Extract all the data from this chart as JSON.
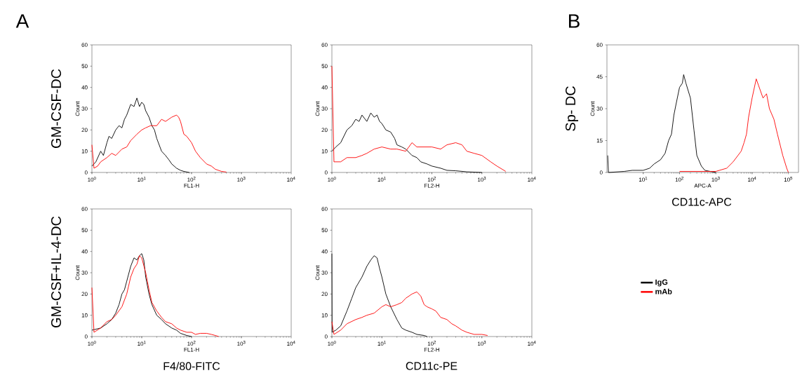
{
  "chart_data": [
    {
      "type": "line",
      "log": "x",
      "xlabel": "FL1-H",
      "ylabel": "Count",
      "xlim": [
        1,
        10000
      ],
      "ylim": [
        0,
        60
      ],
      "xticks": [
        {
          "value": 1,
          "label": "10$^{0}$"
        },
        {
          "value": 10,
          "label": "10$^{1}$"
        },
        {
          "value": 100,
          "label": "10$^{2}$"
        },
        {
          "value": 1000,
          "label": "10$^{3}$"
        },
        {
          "value": 10000,
          "label": "10$^{4}$"
        }
      ],
      "yticks": [
        0,
        10,
        20,
        30,
        40,
        50,
        60
      ],
      "grid": false,
      "marker": "none",
      "annotations": [
        "A",
        "GM-CSF-DC"
      ],
      "series": [
        {
          "color": "#000000",
          "x": [
            1,
            1.2,
            1.5,
            1.7,
            2,
            2.2,
            2.5,
            3,
            3.5,
            4,
            4.5,
            5,
            6,
            7,
            8,
            9,
            10,
            11,
            12,
            14,
            16,
            18,
            20,
            25,
            30,
            35,
            40,
            50,
            60,
            70,
            90
          ],
          "values": [
            3,
            5,
            10,
            8,
            14,
            17,
            16,
            20,
            22,
            21,
            25,
            27,
            32,
            31,
            35,
            31,
            33,
            32,
            29,
            26,
            22,
            20,
            16,
            10,
            8,
            6,
            4,
            2,
            1,
            0.5,
            0
          ]
        },
        {
          "color": "#ff0000",
          "x": [
            1,
            1.1,
            1.3,
            1.5,
            2,
            2.5,
            3,
            4,
            5,
            6,
            8,
            10,
            12,
            15,
            20,
            25,
            30,
            40,
            50,
            55,
            60,
            70,
            80,
            100,
            120,
            150,
            200,
            250,
            300,
            400,
            500
          ],
          "values": [
            13,
            2,
            3,
            5,
            7,
            9,
            8,
            11,
            12,
            15,
            18,
            20,
            21,
            22,
            22,
            25,
            24,
            26,
            27,
            26,
            24,
            18,
            17,
            14,
            10,
            7,
            4,
            3,
            1.5,
            0.5,
            0.2
          ]
        }
      ]
    },
    {
      "type": "line",
      "log": "x",
      "xlabel": "FL2-H",
      "ylabel": "Count",
      "xlim": [
        1,
        10000
      ],
      "ylim": [
        0,
        60
      ],
      "xticks": [
        {
          "value": 1,
          "label": "10$^{0}$"
        },
        {
          "value": 10,
          "label": "10$^{1}$"
        },
        {
          "value": 100,
          "label": "10$^{2}$"
        },
        {
          "value": 1000,
          "label": "10$^{3}$"
        },
        {
          "value": 10000,
          "label": "10$^{4}$"
        }
      ],
      "yticks": [
        0,
        10,
        20,
        30,
        40,
        50,
        60
      ],
      "grid": false,
      "marker": "none",
      "series": [
        {
          "color": "#000000",
          "x": [
            1,
            1.2,
            1.5,
            2,
            2.5,
            3,
            3.5,
            4,
            5,
            6,
            7,
            8,
            9,
            10,
            12,
            15,
            18,
            20,
            25,
            30,
            40,
            50,
            60,
            80,
            100,
            150,
            200,
            300,
            500,
            1000
          ],
          "values": [
            10,
            12,
            14,
            20,
            22,
            25,
            24,
            27,
            24,
            28,
            26,
            27,
            24,
            23,
            20,
            19,
            16,
            13,
            12,
            11,
            8,
            7,
            5,
            4,
            3,
            2,
            1,
            0.8,
            0.3,
            0
          ]
        },
        {
          "color": "#ff0000",
          "x": [
            1,
            1.1,
            1.5,
            2,
            3,
            4,
            5,
            7,
            10,
            15,
            20,
            30,
            40,
            50,
            70,
            100,
            150,
            200,
            300,
            400,
            500,
            700,
            1000,
            1500,
            2000,
            3000
          ],
          "values": [
            50,
            5,
            5,
            7,
            7,
            8,
            9,
            11,
            12,
            11,
            11,
            10,
            14,
            12,
            12,
            12,
            11,
            13,
            14,
            13,
            10,
            9,
            8,
            5,
            3,
            0.5
          ]
        }
      ]
    },
    {
      "type": "line",
      "log": "x",
      "xlabel": "FL1-H",
      "ylabel": "Count",
      "xlim": [
        1,
        10000
      ],
      "ylim": [
        0,
        60
      ],
      "xticks": [
        {
          "value": 1,
          "label": "10$^{0}$"
        },
        {
          "value": 10,
          "label": "10$^{1}$"
        },
        {
          "value": 100,
          "label": "10$^{2}$"
        },
        {
          "value": 1000,
          "label": "10$^{3}$"
        },
        {
          "value": 10000,
          "label": "10$^{4}$"
        }
      ],
      "yticks": [
        0,
        10,
        20,
        30,
        40,
        50,
        60
      ],
      "grid": false,
      "marker": "none",
      "annotations": [
        "GM-CSF+IL-4-DC",
        "F4/80-FITC"
      ],
      "series": [
        {
          "color": "#000000",
          "x": [
            1,
            1.5,
            2,
            2.5,
            3,
            3.5,
            4,
            4.5,
            5,
            6,
            7,
            8,
            9,
            10,
            11,
            12,
            14,
            16,
            20,
            25,
            30,
            40,
            50,
            60,
            80,
            100
          ],
          "values": [
            3,
            4,
            6,
            8,
            11,
            15,
            20,
            22,
            26,
            33,
            37,
            36,
            38,
            39,
            36,
            28,
            20,
            15,
            10,
            8,
            6,
            4,
            3,
            1.5,
            0.5,
            0
          ]
        },
        {
          "color": "#ff0000",
          "x": [
            1,
            1.1,
            1.5,
            2,
            2.5,
            3,
            4,
            5,
            6,
            7,
            8,
            9,
            10,
            12,
            14,
            16,
            20,
            25,
            30,
            40,
            50,
            60,
            80,
            100,
            120,
            150,
            200,
            250,
            300,
            350
          ],
          "values": [
            23,
            2,
            4,
            7,
            8,
            10,
            14,
            20,
            28,
            32,
            34,
            38,
            37,
            30,
            22,
            16,
            12,
            9,
            7,
            6,
            4,
            3,
            2,
            2,
            1,
            1.5,
            1.5,
            1,
            0.5,
            0
          ]
        }
      ]
    },
    {
      "type": "line",
      "log": "x",
      "xlabel": "FL2-H",
      "ylabel": "Count",
      "xlim": [
        1,
        10000
      ],
      "ylim": [
        0,
        60
      ],
      "xticks": [
        {
          "value": 1,
          "label": "10$^{0}$"
        },
        {
          "value": 10,
          "label": "10$^{1}$"
        },
        {
          "value": 100,
          "label": "10$^{2}$"
        },
        {
          "value": 1000,
          "label": "10$^{3}$"
        },
        {
          "value": 10000,
          "label": "10$^{4}$"
        }
      ],
      "yticks": [
        0,
        10,
        20,
        30,
        40,
        50,
        60
      ],
      "grid": false,
      "marker": "none",
      "annotations": [
        "CD11c-PE"
      ],
      "series": [
        {
          "color": "#000000",
          "x": [
            1,
            1.01,
            1.2,
            1.5,
            2,
            2.5,
            3,
            4,
            5,
            6,
            7,
            8,
            9,
            10,
            12,
            15,
            20,
            25,
            30,
            40,
            50,
            70,
            80
          ],
          "values": [
            39,
            2,
            3,
            5,
            12,
            18,
            23,
            28,
            33,
            36,
            38,
            37,
            32,
            28,
            20,
            14,
            8,
            4,
            3,
            2,
            1,
            0.5,
            0
          ]
        },
        {
          "color": "#ff0000",
          "x": [
            1,
            1.1,
            1.5,
            2,
            3,
            4,
            5,
            7,
            10,
            12,
            15,
            20,
            25,
            30,
            40,
            50,
            60,
            70,
            80,
            100,
            120,
            150,
            200,
            250,
            300,
            400,
            500,
            700,
            1000,
            1300
          ],
          "values": [
            7,
            1,
            3,
            6,
            8,
            9,
            10,
            11,
            14,
            15,
            14,
            15,
            16,
            18,
            20,
            21,
            19,
            15,
            14,
            13,
            12,
            9,
            8,
            6,
            5,
            3,
            2,
            1,
            1,
            0.5
          ]
        }
      ]
    },
    {
      "type": "line",
      "log": "x",
      "xlabel": "APC-A",
      "ylabel": "Count",
      "xlim": [
        1,
        190000
      ],
      "ylim": [
        0,
        60
      ],
      "xticks": [
        {
          "value": 10,
          "label": "10$^{1}$"
        },
        {
          "value": 100,
          "label": "10$^{2}$"
        },
        {
          "value": 1000,
          "label": "10$^{3}$"
        },
        {
          "value": 10000,
          "label": "10$^{4}$"
        },
        {
          "value": 100000,
          "label": "10$^{5}$"
        }
      ],
      "yticks": [
        0,
        15,
        30,
        45,
        60
      ],
      "grid": false,
      "marker": "none",
      "legend": "bottom",
      "annotations": [
        "B",
        "Sp- DC",
        "CD11c-APC"
      ],
      "series": [
        {
          "name": "IgG",
          "color": "#000000",
          "x": [
            1.05,
            1.1,
            3,
            5,
            10,
            15,
            20,
            30,
            40,
            50,
            60,
            70,
            80,
            100,
            120,
            130,
            150,
            200,
            250,
            300,
            400,
            500,
            700,
            1000
          ],
          "values": [
            8,
            0,
            0.5,
            1,
            1,
            2,
            4,
            6,
            9,
            15,
            18,
            27,
            32,
            40,
            42,
            46,
            42,
            35,
            20,
            8,
            3,
            1,
            0.5,
            0
          ]
        },
        {
          "name": "mAb",
          "color": "#ff0000",
          "x": [
            100,
            300,
            1000,
            2000,
            3000,
            5000,
            6000,
            7000,
            8000,
            10000,
            13000,
            15000,
            20000,
            25000,
            30000,
            40000,
            50000,
            70000,
            90000,
            100000
          ],
          "values": [
            0.5,
            0.5,
            0.5,
            2,
            5,
            10,
            14,
            18,
            26,
            35,
            44,
            41,
            35,
            37,
            30,
            25,
            18,
            8,
            2,
            0
          ]
        }
      ]
    }
  ]
}
